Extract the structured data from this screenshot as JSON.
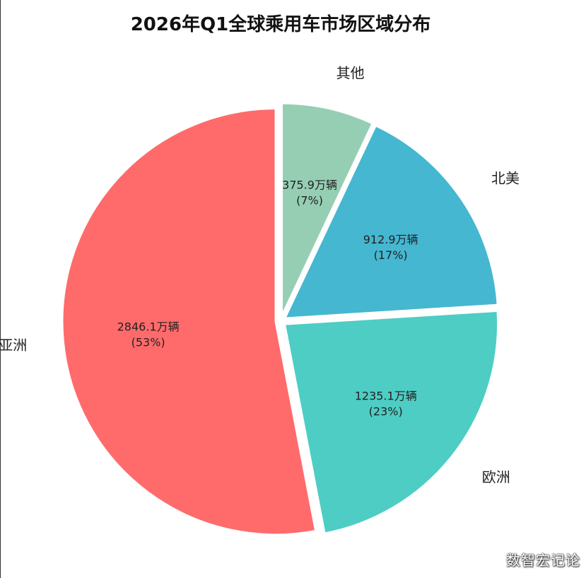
{
  "chart_data": {
    "type": "pie",
    "title": "2026年Q1全球乘用车市场区域分布",
    "slices": [
      {
        "label": "其他",
        "value": 375.9,
        "value_label": "375.9万辆",
        "pct_label": "(7%)",
        "color": "#96CEB4"
      },
      {
        "label": "北美",
        "value": 912.9,
        "value_label": "912.9万辆",
        "pct_label": "(17%)",
        "color": "#45B7D1"
      },
      {
        "label": "欧洲",
        "value": 1235.1,
        "value_label": "1235.1万辆",
        "pct_label": "(23%)",
        "color": "#4ECDC4"
      },
      {
        "label": "亚洲",
        "value": 2846.1,
        "value_label": "2846.1万辆",
        "pct_label": "(53%)",
        "color": "#FF6B6B"
      }
    ],
    "start_angle_deg": 90,
    "direction": "clockwise",
    "exploded": true
  },
  "watermark": "数智宏记论"
}
